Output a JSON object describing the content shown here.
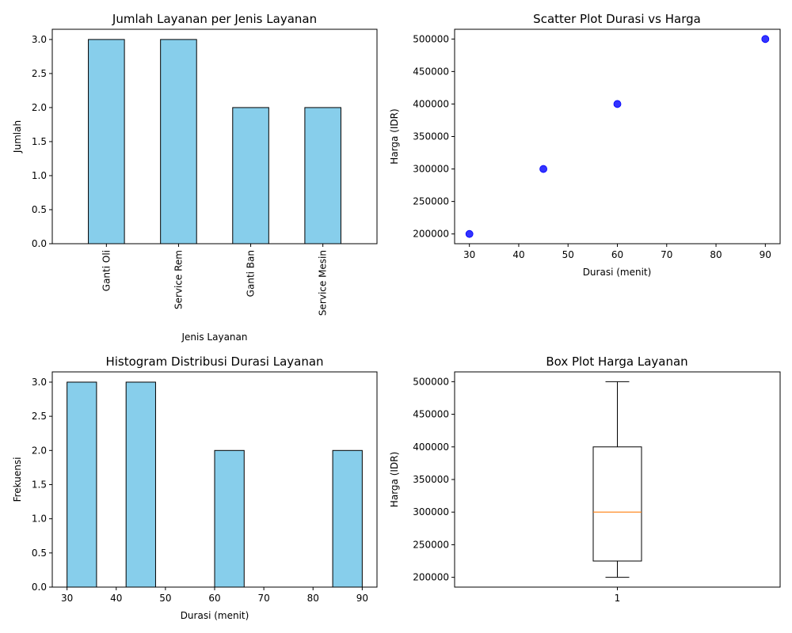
{
  "chart_data": [
    {
      "type": "bar",
      "title": "Jumlah Layanan per Jenis Layanan",
      "xlabel": "Jenis Layanan",
      "ylabel": "Jumlah",
      "categories": [
        "Ganti Oli",
        "Service Rem",
        "Ganti Ban",
        "Service Mesin"
      ],
      "values": [
        3,
        3,
        2,
        2
      ],
      "ylim": [
        0,
        3.15
      ],
      "yticks": [
        "0.0",
        "0.5",
        "1.0",
        "1.5",
        "2.0",
        "2.5",
        "3.0"
      ],
      "bar_color": "#87CEEB",
      "edge_color": "#000000",
      "grid": false
    },
    {
      "type": "scatter",
      "title": "Scatter Plot Durasi vs Harga",
      "xlabel": "Durasi (menit)",
      "ylabel": "Harga (IDR)",
      "x": [
        30,
        45,
        60,
        90
      ],
      "y": [
        200000,
        300000,
        400000,
        500000
      ],
      "xlim": [
        27,
        93
      ],
      "ylim": [
        185000,
        515000
      ],
      "xticks": [
        "30",
        "40",
        "50",
        "60",
        "70",
        "80",
        "90"
      ],
      "yticks": [
        "200000",
        "250000",
        "300000",
        "350000",
        "400000",
        "450000",
        "500000"
      ],
      "point_color": "#0000FF",
      "grid": false
    },
    {
      "type": "bar",
      "subtype": "histogram",
      "title": "Histogram Distribusi Durasi Layanan",
      "xlabel": "Durasi (menit)",
      "ylabel": "Frekuensi",
      "bin_edges": [
        30,
        36,
        42,
        48,
        54,
        60,
        66,
        72,
        78,
        84,
        90
      ],
      "counts": [
        3,
        0,
        3,
        0,
        0,
        2,
        0,
        0,
        0,
        2
      ],
      "xlim": [
        27,
        93
      ],
      "ylim": [
        0,
        3.15
      ],
      "xticks": [
        "30",
        "40",
        "50",
        "60",
        "70",
        "80",
        "90"
      ],
      "yticks": [
        "0.0",
        "0.5",
        "1.0",
        "1.5",
        "2.0",
        "2.5",
        "3.0"
      ],
      "bar_color": "#87CEEB",
      "edge_color": "#000000",
      "grid": false
    },
    {
      "type": "box",
      "title": "Box Plot Harga Layanan",
      "xlabel": "",
      "ylabel": "Harga (IDR)",
      "categories": [
        "1"
      ],
      "stats": {
        "min": 200000,
        "q1": 225000,
        "median": 300000,
        "q3": 400000,
        "max": 500000
      },
      "ylim": [
        185000,
        515000
      ],
      "yticks": [
        "200000",
        "250000",
        "300000",
        "350000",
        "400000",
        "450000",
        "500000"
      ],
      "median_color": "#FF7F0E",
      "grid": false
    }
  ]
}
